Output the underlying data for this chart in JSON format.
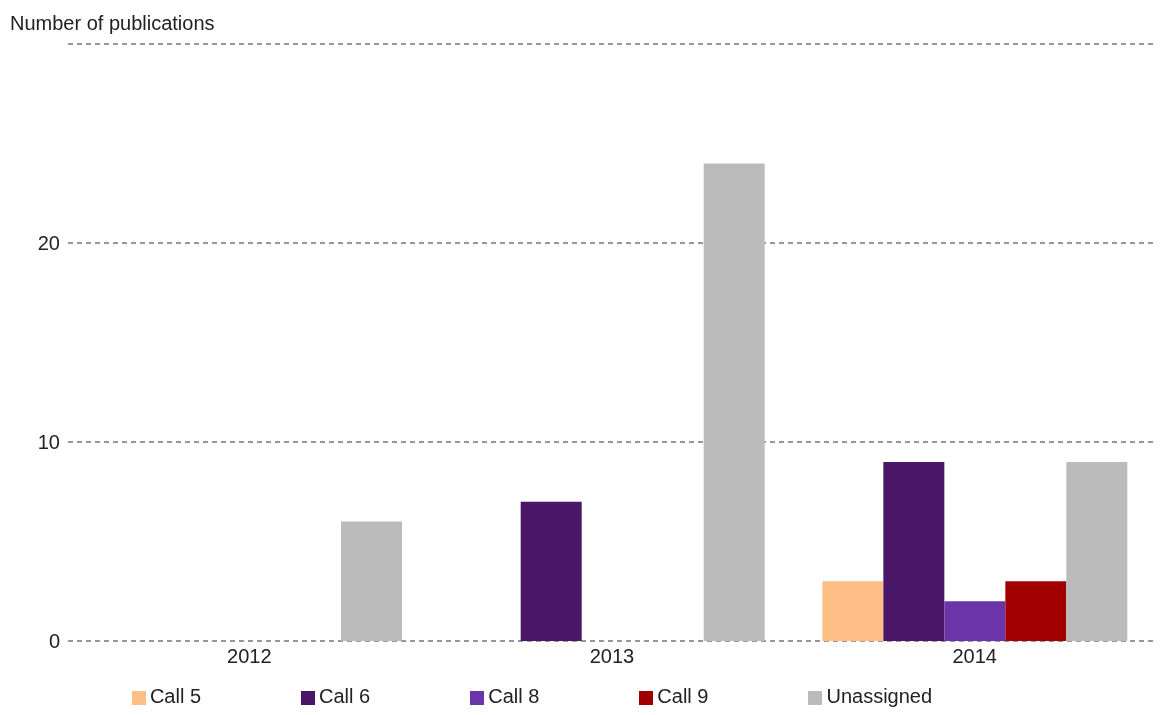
{
  "chart_data": {
    "type": "bar",
    "ylabel": "Number of publications",
    "categories": [
      "2012",
      "2013",
      "2014"
    ],
    "series": [
      {
        "name": "Call 5",
        "color": "#fdbf86",
        "values": [
          null,
          null,
          3
        ]
      },
      {
        "name": "Call 6",
        "color": "#4a1768",
        "values": [
          null,
          7,
          9
        ]
      },
      {
        "name": "Call 8",
        "color": "#6a35a8",
        "values": [
          null,
          null,
          2
        ]
      },
      {
        "name": "Call 9",
        "color": "#a00000",
        "values": [
          null,
          null,
          3
        ]
      },
      {
        "name": "Unassigned",
        "color": "#bbbbbb",
        "values": [
          6,
          24,
          9
        ]
      }
    ],
    "ylim": [
      0,
      30
    ],
    "yticks": [
      0,
      10,
      20,
      {
        "value": 30,
        "label": null
      }
    ],
    "grid": "y",
    "legend": "bottom"
  }
}
